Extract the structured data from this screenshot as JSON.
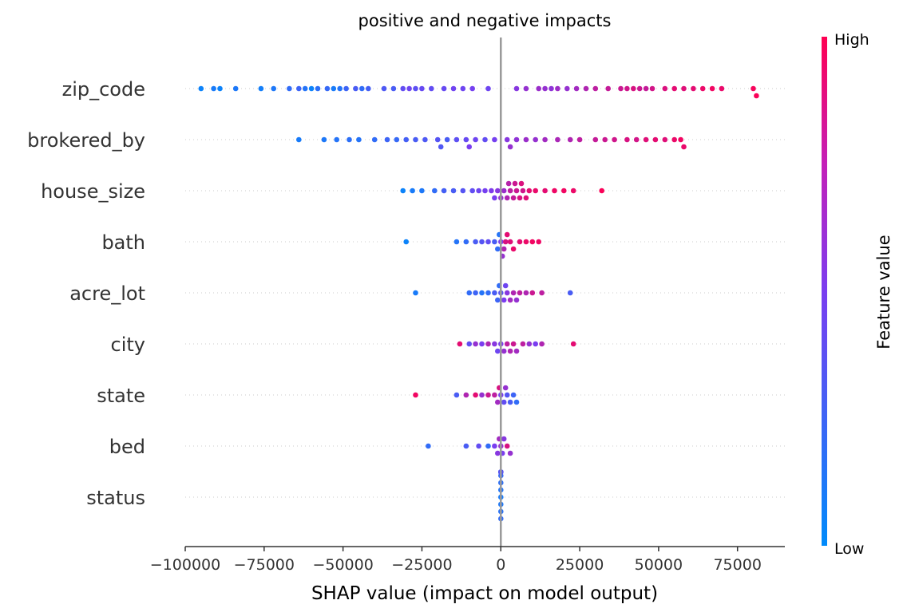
{
  "chart_data": {
    "type": "scatter",
    "title": "positive and negative impacts",
    "xlabel": "SHAP value (impact on model output)",
    "xlim": [
      -100000,
      90000
    ],
    "xticks": [
      -100000,
      -75000,
      -50000,
      -25000,
      0,
      25000,
      50000,
      75000
    ],
    "xtick_labels": [
      "−100000",
      "−75000",
      "−50000",
      "−25000",
      "0",
      "25000",
      "50000",
      "75000"
    ],
    "features": [
      "zip_code",
      "brokered_by",
      "house_size",
      "bath",
      "acre_lot",
      "city",
      "state",
      "bed",
      "status"
    ],
    "colorbar": {
      "title": "Feature value",
      "high_label": "High",
      "low_label": "Low",
      "low_color": "#008bfb",
      "high_color": "#ff0052"
    },
    "series": [
      {
        "feature": "zip_code",
        "points": [
          [
            -95000,
            0.05
          ],
          [
            -91000,
            0.1
          ],
          [
            -89000,
            0.05
          ],
          [
            -84000,
            0.12
          ],
          [
            -76000,
            0.08
          ],
          [
            -72000,
            0.12
          ],
          [
            -67000,
            0.2
          ],
          [
            -64000,
            0.25
          ],
          [
            -62000,
            0.15
          ],
          [
            -60000,
            0.05
          ],
          [
            -58000,
            0.18
          ],
          [
            -55000,
            0.22
          ],
          [
            -53000,
            0.1
          ],
          [
            -51000,
            0.15
          ],
          [
            -49000,
            0.25
          ],
          [
            -46000,
            0.3
          ],
          [
            -44000,
            0.2
          ],
          [
            -42000,
            0.28
          ],
          [
            -37000,
            0.32
          ],
          [
            -34000,
            0.3
          ],
          [
            -31000,
            0.4
          ],
          [
            -29000,
            0.45
          ],
          [
            -27000,
            0.38
          ],
          [
            -25000,
            0.42
          ],
          [
            -22000,
            0.4
          ],
          [
            -18000,
            0.42
          ],
          [
            -15000,
            0.46
          ],
          [
            -12000,
            0.45
          ],
          [
            -9000,
            0.48
          ],
          [
            -4000,
            0.45
          ],
          [
            5000,
            0.55
          ],
          [
            8000,
            0.6
          ],
          [
            12000,
            0.62
          ],
          [
            14000,
            0.6
          ],
          [
            16000,
            0.58
          ],
          [
            18000,
            0.63
          ],
          [
            21000,
            0.6
          ],
          [
            24000,
            0.65
          ],
          [
            27000,
            0.7
          ],
          [
            30000,
            0.75
          ],
          [
            34000,
            0.78
          ],
          [
            38000,
            0.8
          ],
          [
            40000,
            0.82
          ],
          [
            42000,
            0.85
          ],
          [
            44000,
            0.8
          ],
          [
            46000,
            0.78
          ],
          [
            48000,
            0.83
          ],
          [
            52000,
            0.86
          ],
          [
            55000,
            0.9
          ],
          [
            58000,
            0.88
          ],
          [
            61000,
            0.9
          ],
          [
            64000,
            0.93
          ],
          [
            67000,
            0.95
          ],
          [
            70000,
            0.92
          ],
          [
            80000,
            0.97
          ],
          [
            81000,
            0.98
          ]
        ]
      },
      {
        "feature": "brokered_by",
        "points": [
          [
            -64000,
            0.1
          ],
          [
            -56000,
            0.12
          ],
          [
            -52000,
            0.15
          ],
          [
            -48000,
            0.18
          ],
          [
            -45000,
            0.15
          ],
          [
            -40000,
            0.2
          ],
          [
            -36000,
            0.25
          ],
          [
            -33000,
            0.22
          ],
          [
            -30000,
            0.28
          ],
          [
            -27000,
            0.3
          ],
          [
            -24000,
            0.32
          ],
          [
            -20000,
            0.35
          ],
          [
            -17000,
            0.3
          ],
          [
            -14000,
            0.38
          ],
          [
            -11000,
            0.42
          ],
          [
            -8000,
            0.45
          ],
          [
            -5000,
            0.4
          ],
          [
            -2000,
            0.48
          ],
          [
            2000,
            0.55
          ],
          [
            5000,
            0.58
          ],
          [
            8000,
            0.62
          ],
          [
            11000,
            0.6
          ],
          [
            14000,
            0.65
          ],
          [
            18000,
            0.68
          ],
          [
            22000,
            0.7
          ],
          [
            25000,
            0.75
          ],
          [
            30000,
            0.78
          ],
          [
            33000,
            0.8
          ],
          [
            36000,
            0.82
          ],
          [
            40000,
            0.85
          ],
          [
            43000,
            0.83
          ],
          [
            46000,
            0.88
          ],
          [
            49000,
            0.9
          ],
          [
            52000,
            0.88
          ],
          [
            55000,
            0.93
          ],
          [
            57000,
            0.95
          ],
          [
            58000,
            0.92
          ],
          [
            -10000,
            0.5
          ],
          [
            -19000,
            0.33
          ],
          [
            3000,
            0.6
          ]
        ]
      },
      {
        "feature": "house_size",
        "points": [
          [
            -31000,
            0.05
          ],
          [
            -28000,
            0.1
          ],
          [
            -25000,
            0.12
          ],
          [
            -21000,
            0.2
          ],
          [
            -18000,
            0.28
          ],
          [
            -15000,
            0.3
          ],
          [
            -12000,
            0.35
          ],
          [
            -9000,
            0.4
          ],
          [
            -7000,
            0.45
          ],
          [
            -5000,
            0.48
          ],
          [
            -3000,
            0.52
          ],
          [
            -1000,
            0.55
          ],
          [
            1000,
            0.62
          ],
          [
            2000,
            0.7
          ],
          [
            3000,
            0.75
          ],
          [
            4000,
            0.78
          ],
          [
            5000,
            0.8
          ],
          [
            6000,
            0.85
          ],
          [
            7000,
            0.82
          ],
          [
            8000,
            0.88
          ],
          [
            9000,
            0.9
          ],
          [
            11000,
            0.92
          ],
          [
            14000,
            0.9
          ],
          [
            17000,
            0.94
          ],
          [
            20000,
            0.95
          ],
          [
            23000,
            0.93
          ],
          [
            32000,
            0.98
          ],
          [
            -2000,
            0.5
          ],
          [
            0,
            0.6
          ],
          [
            2500,
            0.72
          ],
          [
            4500,
            0.8
          ],
          [
            6500,
            0.86
          ]
        ]
      },
      {
        "feature": "bath",
        "points": [
          [
            -30000,
            0.05
          ],
          [
            -14000,
            0.15
          ],
          [
            -11000,
            0.2
          ],
          [
            -8000,
            0.3
          ],
          [
            -6000,
            0.35
          ],
          [
            -4000,
            0.4
          ],
          [
            -2000,
            0.3
          ],
          [
            -1000,
            0.2
          ],
          [
            0,
            0.5
          ],
          [
            1000,
            0.7
          ],
          [
            1500,
            0.85
          ],
          [
            2000,
            0.9
          ],
          [
            3000,
            0.88
          ],
          [
            4000,
            0.92
          ],
          [
            6000,
            0.9
          ],
          [
            8000,
            0.93
          ],
          [
            10000,
            0.95
          ],
          [
            12000,
            0.94
          ],
          [
            -500,
            0.15
          ],
          [
            500,
            0.6
          ]
        ]
      },
      {
        "feature": "acre_lot",
        "points": [
          [
            -27000,
            0.1
          ],
          [
            -10000,
            0.2
          ],
          [
            -8000,
            0.25
          ],
          [
            -6000,
            0.15
          ],
          [
            -4000,
            0.2
          ],
          [
            -2000,
            0.3
          ],
          [
            -1000,
            0.25
          ],
          [
            0,
            0.35
          ],
          [
            1000,
            0.5
          ],
          [
            2000,
            0.55
          ],
          [
            3000,
            0.65
          ],
          [
            4000,
            0.7
          ],
          [
            5000,
            0.6
          ],
          [
            6000,
            0.75
          ],
          [
            8000,
            0.7
          ],
          [
            10000,
            0.8
          ],
          [
            13000,
            0.75
          ],
          [
            22000,
            0.3
          ],
          [
            -500,
            0.2
          ],
          [
            1500,
            0.45
          ]
        ]
      },
      {
        "feature": "city",
        "points": [
          [
            -13000,
            0.9
          ],
          [
            -10000,
            0.4
          ],
          [
            -8000,
            0.6
          ],
          [
            -6000,
            0.5
          ],
          [
            -4000,
            0.7
          ],
          [
            -2000,
            0.55
          ],
          [
            0,
            0.5
          ],
          [
            1000,
            0.6
          ],
          [
            2000,
            0.75
          ],
          [
            3000,
            0.7
          ],
          [
            4000,
            0.8
          ],
          [
            5000,
            0.65
          ],
          [
            7000,
            0.75
          ],
          [
            9000,
            0.6
          ],
          [
            11000,
            0.5
          ],
          [
            13000,
            0.7
          ],
          [
            23000,
            0.9
          ],
          [
            -1000,
            0.45
          ]
        ]
      },
      {
        "feature": "state",
        "points": [
          [
            -27000,
            0.95
          ],
          [
            -14000,
            0.3
          ],
          [
            -11000,
            0.7
          ],
          [
            -8000,
            0.9
          ],
          [
            -6000,
            0.6
          ],
          [
            -4000,
            0.8
          ],
          [
            -2000,
            0.75
          ],
          [
            -1000,
            0.65
          ],
          [
            0,
            0.5
          ],
          [
            1000,
            0.4
          ],
          [
            2000,
            0.35
          ],
          [
            3000,
            0.3
          ],
          [
            4000,
            0.25
          ],
          [
            5000,
            0.2
          ],
          [
            -500,
            0.85
          ],
          [
            1500,
            0.6
          ]
        ]
      },
      {
        "feature": "bed",
        "points": [
          [
            -23000,
            0.2
          ],
          [
            -11000,
            0.3
          ],
          [
            -7000,
            0.4
          ],
          [
            -4000,
            0.2
          ],
          [
            -2000,
            0.5
          ],
          [
            -1000,
            0.55
          ],
          [
            0,
            0.6
          ],
          [
            500,
            0.5
          ],
          [
            1000,
            0.55
          ],
          [
            2000,
            0.85
          ],
          [
            3000,
            0.6
          ],
          [
            -500,
            0.65
          ]
        ]
      },
      {
        "feature": "status",
        "points": [
          [
            0,
            0.1
          ],
          [
            0,
            0.12
          ],
          [
            0,
            0.14
          ],
          [
            0,
            0.16
          ],
          [
            0,
            0.18
          ],
          [
            0,
            0.2
          ],
          [
            0,
            0.22
          ],
          [
            0,
            0.24
          ],
          [
            0,
            0.26
          ],
          [
            0,
            0.28
          ],
          [
            0,
            0.3
          ],
          [
            0,
            0.32
          ],
          [
            0,
            0.34
          ],
          [
            0,
            0.36
          ]
        ]
      }
    ]
  }
}
